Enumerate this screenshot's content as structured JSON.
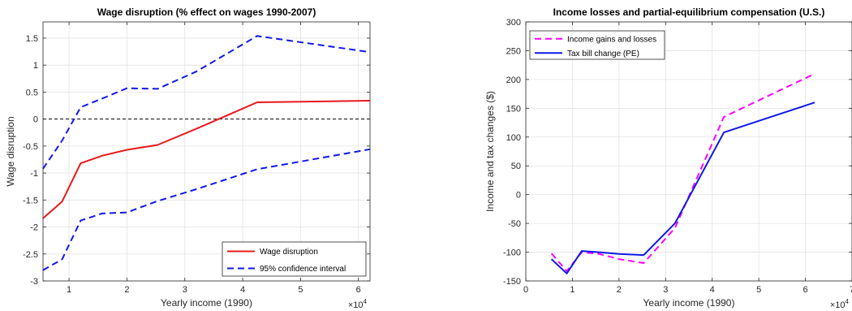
{
  "chart_data": [
    {
      "type": "line",
      "title": "Wage disruption (% effect on wages 1990-2007)",
      "xlabel": "Yearly income (1990)",
      "ylabel": "Wage disruption",
      "x_exponent_label": "×10",
      "x_exponent_power": "4",
      "xlim": [
        5500,
        62000
      ],
      "ylim": [
        -3,
        1.8
      ],
      "grid": true,
      "legend_position": "bottom-right",
      "x_ticks": [
        10000,
        20000,
        30000,
        40000,
        50000,
        60000
      ],
      "x_tick_labels": [
        "1",
        "2",
        "3",
        "4",
        "5",
        "6"
      ],
      "y_ticks": [
        -3,
        -2.5,
        -2,
        -1.5,
        -1,
        -0.5,
        0,
        0.5,
        1,
        1.5
      ],
      "y_tick_labels": [
        "-3",
        "-2.5",
        "-2",
        "-1.5",
        "-1",
        "-0.5",
        "0",
        "0.5",
        "1",
        "1.5"
      ],
      "reference_line": 0,
      "series": [
        {
          "name": "Wage disruption",
          "color": "#e8191b",
          "dash": "solid",
          "x": [
            5500,
            8800,
            12000,
            15700,
            20000,
            25300,
            32000,
            42500,
            62000
          ],
          "y": [
            -1.84,
            -1.53,
            -0.82,
            -0.68,
            -0.57,
            -0.48,
            -0.18,
            0.31,
            0.34
          ]
        },
        {
          "name": "95% confidence interval",
          "color": "#1018e8",
          "dash": "dashed",
          "x": [
            5500,
            8800,
            12000,
            15700,
            20000,
            25300,
            32000,
            42500,
            62000
          ],
          "y": [
            -0.92,
            -0.4,
            0.22,
            0.38,
            0.57,
            0.56,
            0.88,
            1.54,
            1.24
          ]
        },
        {
          "name": "",
          "color": "#1018e8",
          "dash": "dashed",
          "x": [
            5500,
            8800,
            12000,
            15700,
            20000,
            25300,
            32000,
            42500,
            62000
          ],
          "y": [
            -2.8,
            -2.6,
            -1.88,
            -1.75,
            -1.73,
            -1.52,
            -1.3,
            -0.93,
            -0.56
          ]
        }
      ]
    },
    {
      "type": "line",
      "title": "Income losses and partial-equilibrium compensation (U.S.)",
      "xlabel": "Yearly income (1990)",
      "ylabel": "Income and tax changes ($)",
      "x_exponent_label": "×10",
      "x_exponent_power": "4",
      "xlim": [
        0,
        70000
      ],
      "ylim": [
        -150,
        300
      ],
      "grid": true,
      "legend_position": "top-left",
      "x_ticks": [
        0,
        10000,
        20000,
        30000,
        40000,
        50000,
        60000,
        70000
      ],
      "x_tick_labels": [
        "0",
        "1",
        "2",
        "3",
        "4",
        "5",
        "6",
        "7"
      ],
      "y_ticks": [
        -150,
        -100,
        -50,
        0,
        50,
        100,
        150,
        200,
        250,
        300
      ],
      "y_tick_labels": [
        "-150",
        "-100",
        "-50",
        "0",
        "50",
        "100",
        "150",
        "200",
        "250",
        "300"
      ],
      "series": [
        {
          "name": "Income gains and losses",
          "color": "#ff00ff",
          "dash": "dashed",
          "x": [
            5500,
            8800,
            12000,
            15700,
            20000,
            25300,
            32000,
            42500,
            62000
          ],
          "y": [
            -102,
            -133,
            -100,
            -103,
            -112,
            -119,
            -58,
            135,
            210
          ]
        },
        {
          "name": "Tax bill change (PE)",
          "color": "#1018e8",
          "dash": "solid",
          "x": [
            5500,
            8800,
            12000,
            15700,
            20000,
            25300,
            32000,
            42500,
            62000
          ],
          "y": [
            -112,
            -137,
            -98,
            -100,
            -103,
            -105,
            -50,
            108,
            160
          ]
        }
      ]
    }
  ]
}
